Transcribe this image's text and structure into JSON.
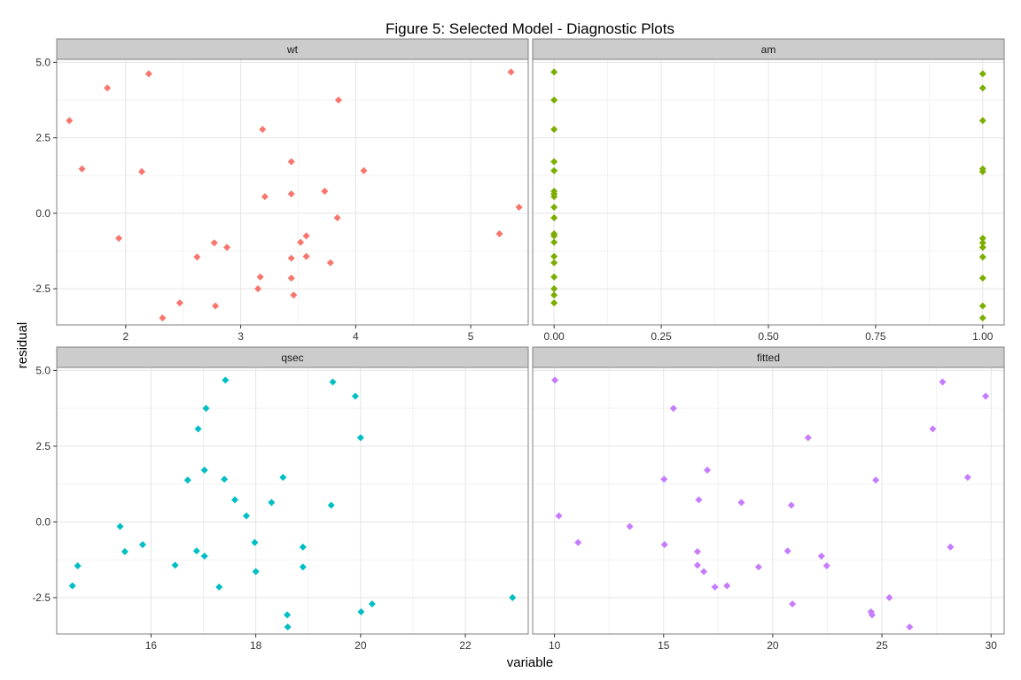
{
  "chart_data": {
    "type": "scatter",
    "title": "Figure 5: Selected Model - Diagnostic Plots",
    "xlabel": "variable",
    "ylabel": "residual",
    "grid": true,
    "yticks": [
      -2.5,
      0.0,
      2.5,
      5.0
    ],
    "ytick_labels": [
      "-2.5",
      "0.0",
      "2.5",
      "5.0"
    ],
    "panels": [
      {
        "name": "wt",
        "color": "#F8766D",
        "xlim": [
          1.4,
          5.5
        ],
        "ylim": [
          -3.7,
          5.1
        ],
        "xticks": [
          2,
          3,
          4,
          5
        ],
        "xtick_labels": [
          "2",
          "3",
          "4",
          "5"
        ],
        "points": [
          [
            1.51,
            3.07
          ],
          [
            1.62,
            1.47
          ],
          [
            1.84,
            4.15
          ],
          [
            1.94,
            -0.83
          ],
          [
            2.14,
            1.38
          ],
          [
            2.2,
            4.62
          ],
          [
            2.32,
            -3.47
          ],
          [
            2.47,
            -2.97
          ],
          [
            2.62,
            -1.45
          ],
          [
            2.77,
            -0.98
          ],
          [
            2.78,
            -3.07
          ],
          [
            2.88,
            -1.13
          ],
          [
            3.15,
            -2.5
          ],
          [
            3.17,
            -2.11
          ],
          [
            3.19,
            2.78
          ],
          [
            3.21,
            0.55
          ],
          [
            3.44,
            -2.15
          ],
          [
            3.44,
            -1.49
          ],
          [
            3.44,
            0.64
          ],
          [
            3.44,
            1.71
          ],
          [
            3.46,
            -2.71
          ],
          [
            3.52,
            -0.96
          ],
          [
            3.57,
            -1.43
          ],
          [
            3.57,
            -0.75
          ],
          [
            3.73,
            0.73
          ],
          [
            3.78,
            -1.64
          ],
          [
            3.84,
            -0.15
          ],
          [
            3.85,
            3.75
          ],
          [
            4.07,
            1.41
          ],
          [
            5.25,
            -0.68
          ],
          [
            5.35,
            4.68
          ],
          [
            5.42,
            0.2
          ]
        ]
      },
      {
        "name": "am",
        "color": "#7CAE00",
        "xlim": [
          -0.05,
          1.05
        ],
        "ylim": [
          -3.7,
          5.1
        ],
        "xticks": [
          0,
          0.25,
          0.5,
          0.75,
          1
        ],
        "xtick_labels": [
          "0.00",
          "0.25",
          "0.50",
          "0.75",
          "1.00"
        ],
        "points": [
          [
            0,
            4.68
          ],
          [
            0,
            3.75
          ],
          [
            0,
            2.78
          ],
          [
            0,
            1.71
          ],
          [
            0,
            1.41
          ],
          [
            0,
            0.73
          ],
          [
            0,
            0.64
          ],
          [
            0,
            0.55
          ],
          [
            0,
            0.2
          ],
          [
            0,
            -0.15
          ],
          [
            0,
            -0.68
          ],
          [
            0,
            -0.75
          ],
          [
            0,
            -0.96
          ],
          [
            0,
            -1.43
          ],
          [
            0,
            -1.64
          ],
          [
            0,
            -2.11
          ],
          [
            0,
            -2.5
          ],
          [
            0,
            -2.71
          ],
          [
            0,
            -2.97
          ],
          [
            1,
            4.62
          ],
          [
            1,
            4.15
          ],
          [
            1,
            3.07
          ],
          [
            1,
            1.47
          ],
          [
            1,
            1.38
          ],
          [
            1,
            -0.83
          ],
          [
            1,
            -0.98
          ],
          [
            1,
            -1.13
          ],
          [
            1,
            -1.45
          ],
          [
            1,
            -2.15
          ],
          [
            1,
            -3.07
          ],
          [
            1,
            -3.47
          ]
        ]
      },
      {
        "name": "qsec",
        "color": "#00BFC4",
        "xlim": [
          14.2,
          23.2
        ],
        "ylim": [
          -3.7,
          5.1
        ],
        "xticks": [
          16,
          18,
          20,
          22
        ],
        "xtick_labels": [
          "16",
          "18",
          "20",
          "22"
        ],
        "points": [
          [
            14.5,
            -2.11
          ],
          [
            14.6,
            -1.45
          ],
          [
            15.41,
            -0.15
          ],
          [
            15.5,
            -0.98
          ],
          [
            15.84,
            -0.75
          ],
          [
            16.46,
            -1.43
          ],
          [
            16.7,
            1.38
          ],
          [
            16.87,
            -0.96
          ],
          [
            16.9,
            3.07
          ],
          [
            17.02,
            1.71
          ],
          [
            17.02,
            -1.13
          ],
          [
            17.05,
            3.75
          ],
          [
            17.3,
            -2.15
          ],
          [
            17.4,
            1.41
          ],
          [
            17.42,
            4.68
          ],
          [
            17.6,
            0.73
          ],
          [
            17.82,
            0.2
          ],
          [
            17.98,
            -0.68
          ],
          [
            18.0,
            -1.64
          ],
          [
            18.3,
            0.64
          ],
          [
            18.52,
            1.47
          ],
          [
            18.6,
            -3.07
          ],
          [
            18.61,
            -3.47
          ],
          [
            18.9,
            -0.83
          ],
          [
            18.9,
            -1.49
          ],
          [
            19.44,
            0.55
          ],
          [
            19.47,
            4.62
          ],
          [
            19.9,
            4.15
          ],
          [
            20.0,
            2.78
          ],
          [
            20.01,
            -2.97
          ],
          [
            20.22,
            -2.71
          ],
          [
            22.9,
            -2.5
          ]
        ]
      },
      {
        "name": "fitted",
        "color": "#C77CFF",
        "xlim": [
          9.0,
          30.6
        ],
        "ylim": [
          -3.7,
          5.1
        ],
        "xticks": [
          10,
          15,
          20,
          25,
          30
        ],
        "xtick_labels": [
          "10",
          "15",
          "20",
          "25",
          "30"
        ],
        "points": [
          [
            10.02,
            4.68
          ],
          [
            10.2,
            0.2
          ],
          [
            11.08,
            -0.68
          ],
          [
            13.45,
            -0.15
          ],
          [
            15.02,
            1.41
          ],
          [
            15.04,
            -0.75
          ],
          [
            15.45,
            3.75
          ],
          [
            16.55,
            -0.98
          ],
          [
            16.55,
            -1.43
          ],
          [
            16.61,
            0.73
          ],
          [
            16.84,
            -1.64
          ],
          [
            17.0,
            1.71
          ],
          [
            17.35,
            -2.15
          ],
          [
            17.9,
            -2.11
          ],
          [
            18.56,
            0.64
          ],
          [
            19.35,
            -1.49
          ],
          [
            20.68,
            -0.96
          ],
          [
            20.85,
            0.55
          ],
          [
            20.9,
            -2.71
          ],
          [
            21.62,
            2.78
          ],
          [
            22.23,
            -1.13
          ],
          [
            22.47,
            -1.45
          ],
          [
            24.5,
            -2.97
          ],
          [
            24.55,
            -3.07
          ],
          [
            24.72,
            1.38
          ],
          [
            25.34,
            -2.5
          ],
          [
            26.27,
            -3.47
          ],
          [
            27.33,
            3.07
          ],
          [
            27.78,
            4.62
          ],
          [
            28.14,
            -0.83
          ],
          [
            28.93,
            1.47
          ],
          [
            29.75,
            4.15
          ]
        ]
      }
    ]
  }
}
